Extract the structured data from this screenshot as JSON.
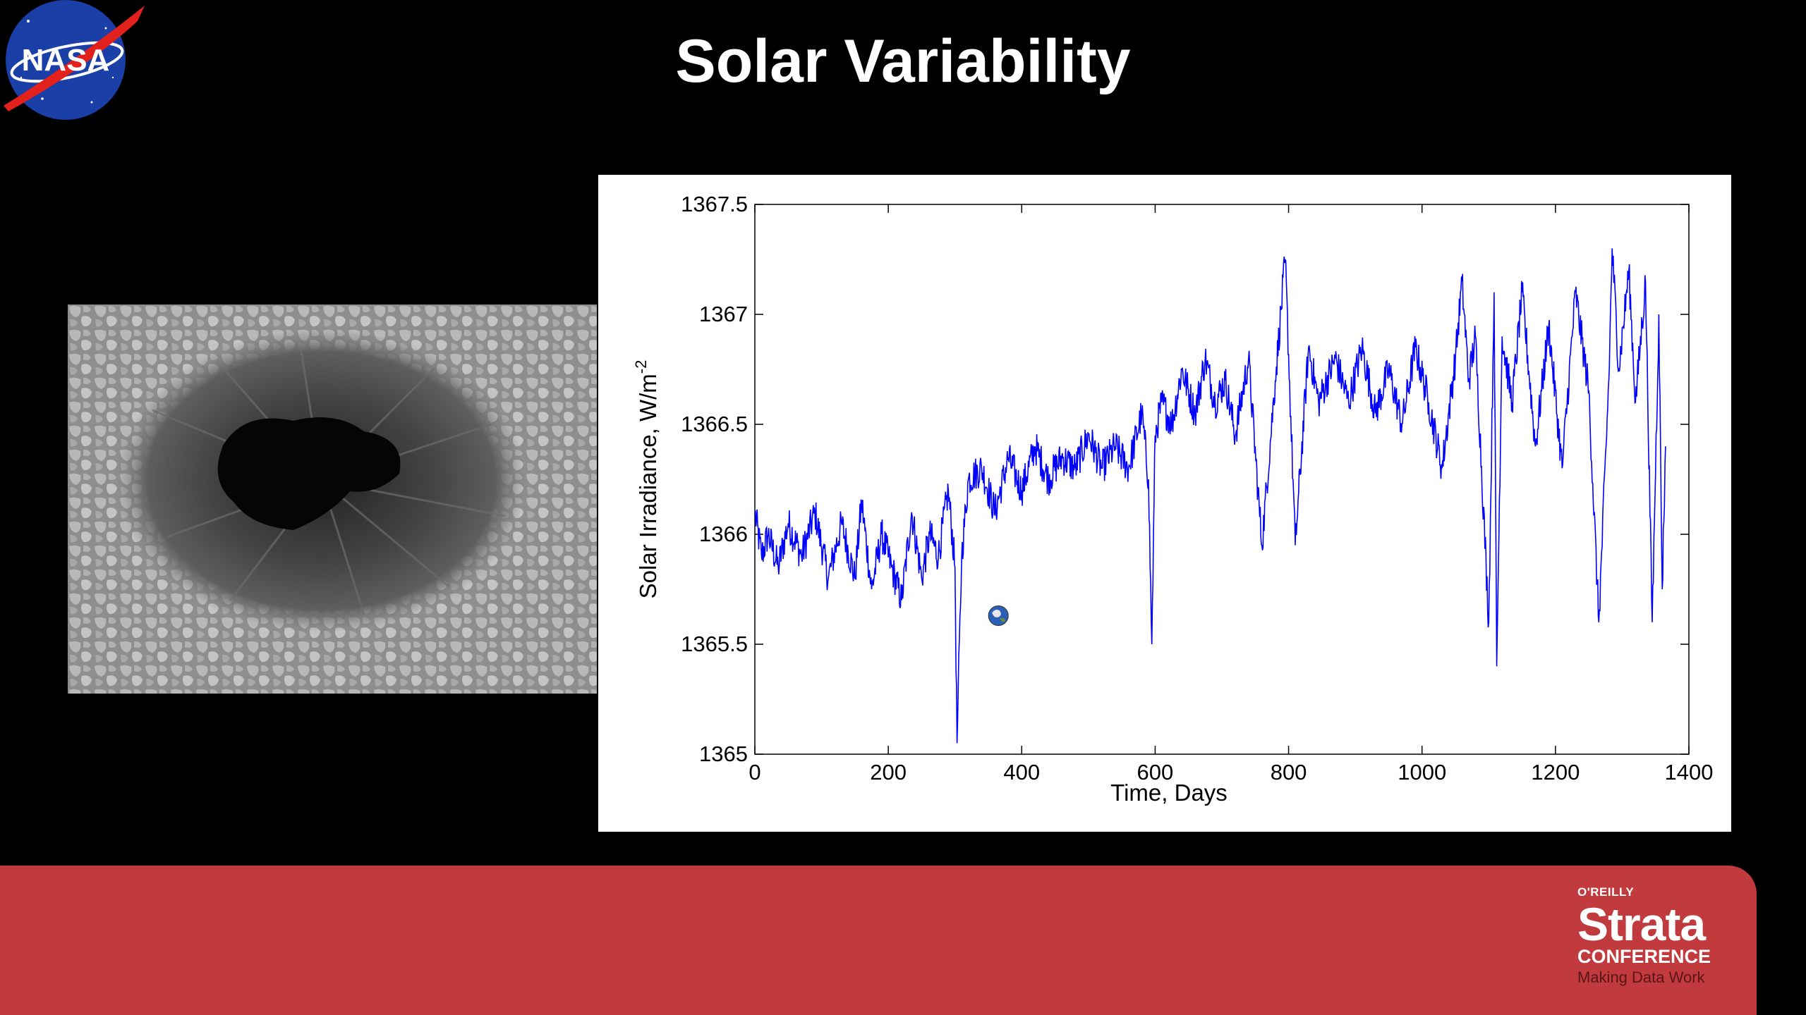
{
  "slide": {
    "title": "Solar Variability",
    "logo_left": {
      "icon": "nasa-logo",
      "text": "NASA"
    },
    "logo_right": {
      "icon": "strata-conference-logo",
      "publisher": "O'REILLY",
      "brand": "Strata",
      "sub": "CONFERENCE",
      "tagline": "Making Data Work"
    },
    "image_left": {
      "icon": "sunspot-photo"
    },
    "colors": {
      "background": "#000000",
      "footer": "#c13a3d",
      "line": "#0000ff",
      "title": "#ffffff"
    }
  },
  "chart_data": {
    "type": "line",
    "title": "",
    "xlabel": "Time, Days",
    "ylabel": "Solar Irradiance, W/m",
    "ylabel_sup": "-2",
    "xlim": [
      0,
      1400
    ],
    "ylim": [
      1365,
      1367.5
    ],
    "xticks": [
      "0",
      "200",
      "400",
      "600",
      "800",
      "1000",
      "1200",
      "1400"
    ],
    "yticks": [
      "1365",
      "1365.5",
      "1366",
      "1366.5",
      "1367",
      "1367.5"
    ],
    "grid": false,
    "marker_icon": "earth-icon",
    "marker": {
      "x": 365,
      "y": 1365.63
    },
    "series": [
      {
        "color": "#0000ff",
        "x": [
          0,
          10,
          20,
          35,
          50,
          70,
          90,
          110,
          130,
          150,
          160,
          175,
          190,
          205,
          220,
          235,
          250,
          262,
          275,
          290,
          300,
          303,
          310,
          320,
          340,
          360,
          380,
          400,
          420,
          440,
          460,
          480,
          500,
          520,
          540,
          560,
          580,
          590,
          595,
          600,
          610,
          625,
          640,
          660,
          675,
          690,
          705,
          720,
          740,
          760,
          780,
          795,
          810,
          830,
          845,
          870,
          890,
          910,
          930,
          950,
          970,
          990,
          1010,
          1030,
          1050,
          1060,
          1070,
          1080,
          1100,
          1108,
          1112,
          1120,
          1135,
          1150,
          1170,
          1190,
          1210,
          1230,
          1250,
          1265,
          1280,
          1285,
          1295,
          1310,
          1320,
          1335,
          1345,
          1355,
          1360,
          1365
        ],
        "y": [
          1366.1,
          1365.9,
          1366.0,
          1365.85,
          1366.05,
          1365.9,
          1366.1,
          1365.8,
          1366.05,
          1365.8,
          1366.15,
          1365.75,
          1366.0,
          1365.85,
          1365.7,
          1366.1,
          1365.8,
          1366.0,
          1365.9,
          1366.2,
          1365.85,
          1365.05,
          1365.9,
          1366.25,
          1366.3,
          1366.1,
          1366.35,
          1366.2,
          1366.4,
          1366.25,
          1366.35,
          1366.3,
          1366.45,
          1366.3,
          1366.4,
          1366.3,
          1366.55,
          1366.25,
          1365.5,
          1366.45,
          1366.6,
          1366.5,
          1366.75,
          1366.55,
          1366.8,
          1366.6,
          1366.7,
          1366.45,
          1366.8,
          1365.95,
          1366.7,
          1367.25,
          1365.95,
          1366.85,
          1366.6,
          1366.8,
          1366.6,
          1366.85,
          1366.55,
          1366.75,
          1366.5,
          1366.85,
          1366.6,
          1366.3,
          1366.8,
          1367.15,
          1366.7,
          1366.9,
          1365.6,
          1367.1,
          1365.4,
          1366.9,
          1366.6,
          1367.1,
          1366.4,
          1366.95,
          1366.3,
          1367.1,
          1366.65,
          1365.6,
          1366.7,
          1367.3,
          1366.75,
          1367.2,
          1366.6,
          1367.15,
          1365.6,
          1367.0,
          1365.75,
          1366.4
        ]
      }
    ]
  }
}
